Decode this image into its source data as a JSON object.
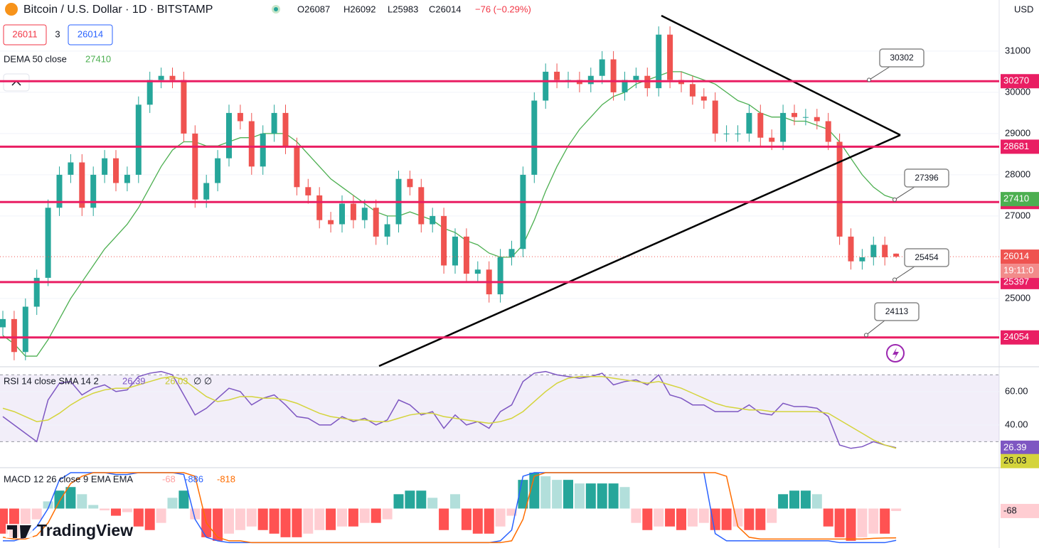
{
  "header": {
    "symbol": "Bitcoin / U.S. Dollar · 1D · BITSTAMP",
    "open": "O26087",
    "high": "H26092",
    "low": "L25983",
    "close": "C26014",
    "change": "−76 (−0.29%)",
    "bid": "26011",
    "spread": "3",
    "ask": "26014",
    "branding": "TradingView"
  },
  "chart_data": [
    {
      "type": "candlestick",
      "currency": "USD",
      "up_color": "#26a69a",
      "down_color": "#ef5350",
      "open": [
        24300,
        24500,
        23700,
        24800,
        25500,
        27200,
        28000,
        28300,
        27200,
        28000,
        28400,
        27800,
        28000,
        29700,
        30300,
        30400,
        30300,
        29000,
        27400,
        27800,
        28400,
        29500,
        29300,
        28200,
        29000,
        29500,
        28700,
        27700,
        27500,
        26900,
        26800,
        27300,
        26900,
        27200,
        26500,
        26800,
        27900,
        27700,
        26800,
        27000,
        25800,
        26500,
        25600,
        25700,
        25100,
        26000,
        26200,
        28000,
        29800,
        30500,
        30300,
        30300,
        30200,
        30400,
        30800,
        30000,
        30300,
        30400,
        30100,
        31400,
        30300,
        30200,
        29900,
        29800,
        29000,
        29000,
        29000,
        29500,
        28900,
        28800,
        29500,
        29400,
        29400,
        29300,
        28800,
        26500,
        25900,
        26000,
        26300,
        26087
      ],
      "high": [
        24700,
        24700,
        25000,
        25700,
        27400,
        28200,
        28500,
        28500,
        28200,
        28600,
        28600,
        28200,
        29900,
        30500,
        30600,
        30600,
        30500,
        29200,
        28000,
        28600,
        29700,
        29700,
        29500,
        29200,
        29700,
        29700,
        28900,
        27900,
        27700,
        27100,
        27500,
        27500,
        27400,
        27400,
        27000,
        28100,
        28100,
        27900,
        27200,
        27200,
        26700,
        26700,
        25900,
        25900,
        26200,
        26400,
        28200,
        30000,
        30700,
        30700,
        30500,
        30500,
        30600,
        31000,
        31000,
        30500,
        30600,
        30600,
        31600,
        31600,
        30500,
        30400,
        30100,
        30000,
        29200,
        29200,
        29700,
        29700,
        29100,
        29700,
        29700,
        29600,
        29600,
        29500,
        29000,
        26700,
        26200,
        26500,
        26500,
        26092
      ],
      "low": [
        24100,
        23500,
        23500,
        24600,
        25300,
        27000,
        27800,
        27000,
        27000,
        27800,
        27600,
        27600,
        27800,
        29500,
        30100,
        30100,
        28800,
        27200,
        27200,
        27600,
        28200,
        29100,
        28000,
        28000,
        28800,
        28500,
        27500,
        27300,
        26700,
        26600,
        26600,
        26700,
        26700,
        26300,
        26300,
        26600,
        27500,
        26600,
        26600,
        25600,
        25600,
        25400,
        25400,
        24900,
        24900,
        25800,
        26000,
        27800,
        29600,
        30100,
        30100,
        30000,
        30000,
        30200,
        29800,
        29800,
        30100,
        29900,
        29900,
        30100,
        30000,
        29700,
        29600,
        28800,
        28800,
        28800,
        28800,
        28700,
        28600,
        28600,
        29200,
        29200,
        29100,
        28600,
        26300,
        25700,
        25700,
        25800,
        25800,
        25983
      ],
      "close": [
        24500,
        23700,
        24800,
        25500,
        27200,
        28000,
        28300,
        27200,
        28000,
        28400,
        27800,
        28000,
        29700,
        30300,
        30400,
        30300,
        29000,
        27400,
        27800,
        28400,
        29500,
        29300,
        28200,
        29000,
        29500,
        28700,
        27700,
        27500,
        26900,
        26800,
        27300,
        26900,
        27200,
        26500,
        26800,
        27900,
        27700,
        26800,
        27000,
        25800,
        26500,
        25600,
        25700,
        25100,
        26000,
        26200,
        28000,
        29800,
        30500,
        30300,
        30300,
        30200,
        30400,
        30800,
        30000,
        30300,
        30400,
        30100,
        31400,
        30300,
        30200,
        29900,
        29800,
        29000,
        29000,
        29000,
        29500,
        28900,
        28800,
        29500,
        29400,
        29400,
        29300,
        28800,
        26500,
        25900,
        26000,
        26300,
        26000,
        26014
      ],
      "ylim": [
        23360,
        32240
      ],
      "yticks": [
        25000,
        27000,
        28000,
        29000,
        30000,
        31000
      ],
      "indicator": {
        "name": "DEMA 50 close",
        "color": "#4caf50",
        "values": [
          24100,
          23900,
          23600,
          23600,
          24000,
          24500,
          25000,
          25400,
          25800,
          26200,
          26500,
          26800,
          27200,
          27700,
          28200,
          28600,
          28800,
          28800,
          28700,
          28700,
          28800,
          28900,
          28900,
          29000,
          29000,
          29000,
          28800,
          28500,
          28200,
          27900,
          27700,
          27500,
          27300,
          27100,
          27000,
          27000,
          27100,
          27000,
          26900,
          26700,
          26600,
          26400,
          26300,
          26100,
          26000,
          26000,
          26300,
          26900,
          27600,
          28200,
          28700,
          29100,
          29400,
          29700,
          29900,
          30000,
          30200,
          30300,
          30400,
          30500,
          30500,
          30400,
          30300,
          30200,
          30000,
          29800,
          29700,
          29500,
          29400,
          29400,
          29300,
          29300,
          29200,
          29100,
          28800,
          28400,
          28000,
          27700,
          27500,
          27410
        ]
      },
      "levels": [
        30270,
        28681,
        27339,
        25397,
        24054
      ],
      "level_color": "#e91e63",
      "callouts": [
        30302,
        27396,
        25454,
        24113
      ],
      "countdown": "19:11:0"
    },
    {
      "type": "line",
      "title": "RSI 14 close SMA 14 2",
      "title_suffix": "∅ ∅",
      "ylim": [
        15.7,
        74
      ],
      "yticks": [
        {
          "value": 60,
          "label": "60.00"
        },
        {
          "value": 40,
          "label": "40.00"
        }
      ],
      "band": [
        30,
        70
      ],
      "series": [
        {
          "color": "#7e57c2",
          "values": [
            45,
            40,
            35,
            30,
            55,
            65,
            66,
            58,
            62,
            64,
            60,
            61,
            69,
            71,
            72,
            70,
            58,
            46,
            50,
            56,
            62,
            60,
            52,
            56,
            58,
            52,
            45,
            44,
            40,
            40,
            45,
            42,
            44,
            40,
            43,
            55,
            52,
            46,
            48,
            38,
            46,
            40,
            42,
            38,
            48,
            52,
            66,
            71,
            72,
            70,
            69,
            68,
            69,
            71,
            64,
            66,
            67,
            64,
            70,
            58,
            56,
            52,
            52,
            48,
            48,
            48,
            52,
            47,
            46,
            53,
            51,
            51,
            50,
            45,
            28,
            26,
            27,
            30,
            28,
            26.39
          ]
        },
        {
          "color": "#d4d43c",
          "values": [
            50,
            48,
            45,
            42,
            43,
            47,
            52,
            56,
            59,
            61,
            62,
            62,
            64,
            66,
            68,
            69,
            67,
            62,
            57,
            54,
            55,
            57,
            57,
            56,
            56,
            55,
            53,
            50,
            47,
            45,
            44,
            43,
            43,
            42,
            42,
            44,
            46,
            47,
            47,
            45,
            44,
            43,
            42,
            41,
            42,
            44,
            48,
            54,
            60,
            65,
            68,
            69,
            69,
            69,
            68,
            67,
            66,
            65,
            66,
            64,
            62,
            59,
            56,
            53,
            51,
            50,
            49,
            49,
            48,
            48,
            48,
            48,
            48,
            47,
            43,
            39,
            35,
            31,
            28,
            26.03
          ]
        }
      ]
    },
    {
      "type": "macd",
      "title": "MACD 12 26 close 9 EMA EMA",
      "ylim": [
        -1100,
        1100
      ],
      "hist_colors": [
        "#26a69a",
        "#b2dfdb",
        "#ff5252",
        "#ffcdd2"
      ],
      "histogram": {
        "color": "#ff5252",
        "values": [
          -700,
          -800,
          -600,
          -300,
          200,
          500,
          600,
          400,
          100,
          -50,
          -200,
          -100,
          -500,
          -600,
          -400,
          300,
          500,
          -300,
          -800,
          -900,
          -700,
          -600,
          -500,
          -600,
          -700,
          -800,
          -800,
          -700,
          -600,
          -600,
          -500,
          -500,
          -400,
          -400,
          -300,
          400,
          500,
          500,
          300,
          -600,
          400,
          -600,
          -700,
          -700,
          -500,
          -200,
          800,
          1000,
          900,
          800,
          800,
          700,
          700,
          700,
          700,
          600,
          -400,
          -600,
          -500,
          -500,
          -600,
          -500,
          -400,
          -600,
          -600,
          -500,
          -600,
          -600,
          -400,
          400,
          500,
          500,
          400,
          -500,
          -800,
          -900,
          -800,
          -700,
          -700,
          -68
        ]
      },
      "series": [
        {
          "color": "#2962ff",
          "values": [
            -900,
            -900,
            -800,
            -500,
            0,
            800,
            1000,
            1000,
            1000,
            1000,
            950,
            950,
            1000,
            1000,
            1000,
            1000,
            950,
            -300,
            -800,
            -900,
            -950,
            -950,
            -950,
            -950,
            -950,
            -950,
            -950,
            -950,
            -950,
            -950,
            -950,
            -950,
            -950,
            -950,
            -950,
            -950,
            -950,
            -950,
            -950,
            -950,
            -950,
            -950,
            -950,
            -950,
            -900,
            -600,
            900,
            1000,
            1000,
            1000,
            1000,
            1000,
            1000,
            1000,
            1000,
            1000,
            1000,
            1000,
            1000,
            1000,
            1000,
            1000,
            1000,
            -700,
            -900,
            -900,
            -900,
            -900,
            -900,
            -900,
            -900,
            -900,
            -900,
            -900,
            -950,
            -950,
            -950,
            -950,
            -950,
            -886
          ]
        },
        {
          "color": "#ff6d00",
          "values": [
            -800,
            -850,
            -850,
            -750,
            -400,
            200,
            700,
            900,
            1000,
            1000,
            1000,
            1000,
            1000,
            1000,
            1000,
            1000,
            1000,
            900,
            -400,
            -800,
            -900,
            -900,
            -950,
            -950,
            -950,
            -950,
            -950,
            -950,
            -950,
            -950,
            -950,
            -950,
            -950,
            -950,
            -950,
            -950,
            -950,
            -950,
            -950,
            -950,
            -950,
            -950,
            -950,
            -950,
            -950,
            -900,
            -300,
            900,
            1000,
            1000,
            1000,
            1000,
            1000,
            1000,
            1000,
            1000,
            1000,
            1000,
            1000,
            1000,
            1000,
            1000,
            1000,
            1000,
            900,
            -500,
            -800,
            -850,
            -850,
            -850,
            -850,
            -850,
            -850,
            -850,
            -850,
            -850,
            -850,
            -830,
            -820,
            -818
          ]
        }
      ]
    }
  ]
}
